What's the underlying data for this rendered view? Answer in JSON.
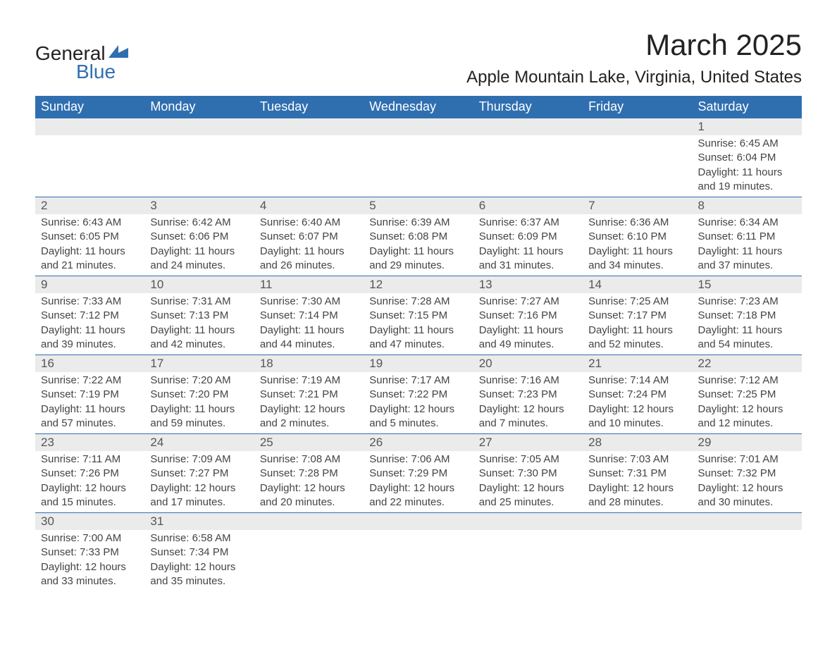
{
  "logo": {
    "general": "General",
    "blue": "Blue",
    "icon_color": "#2f6fb0"
  },
  "title": "March 2025",
  "location": "Apple Mountain Lake, Virginia, United States",
  "colors": {
    "header_bg": "#2f6fb0",
    "header_text": "#ffffff",
    "daynum_bg": "#ebebeb",
    "daynum_text": "#555555",
    "body_text": "#444444",
    "border": "#2f6fb0",
    "page_bg": "#ffffff"
  },
  "day_headers": [
    "Sunday",
    "Monday",
    "Tuesday",
    "Wednesday",
    "Thursday",
    "Friday",
    "Saturday"
  ],
  "weeks": [
    [
      null,
      null,
      null,
      null,
      null,
      null,
      {
        "n": "1",
        "sunrise": "Sunrise: 6:45 AM",
        "sunset": "Sunset: 6:04 PM",
        "day1": "Daylight: 11 hours",
        "day2": "and 19 minutes."
      }
    ],
    [
      {
        "n": "2",
        "sunrise": "Sunrise: 6:43 AM",
        "sunset": "Sunset: 6:05 PM",
        "day1": "Daylight: 11 hours",
        "day2": "and 21 minutes."
      },
      {
        "n": "3",
        "sunrise": "Sunrise: 6:42 AM",
        "sunset": "Sunset: 6:06 PM",
        "day1": "Daylight: 11 hours",
        "day2": "and 24 minutes."
      },
      {
        "n": "4",
        "sunrise": "Sunrise: 6:40 AM",
        "sunset": "Sunset: 6:07 PM",
        "day1": "Daylight: 11 hours",
        "day2": "and 26 minutes."
      },
      {
        "n": "5",
        "sunrise": "Sunrise: 6:39 AM",
        "sunset": "Sunset: 6:08 PM",
        "day1": "Daylight: 11 hours",
        "day2": "and 29 minutes."
      },
      {
        "n": "6",
        "sunrise": "Sunrise: 6:37 AM",
        "sunset": "Sunset: 6:09 PM",
        "day1": "Daylight: 11 hours",
        "day2": "and 31 minutes."
      },
      {
        "n": "7",
        "sunrise": "Sunrise: 6:36 AM",
        "sunset": "Sunset: 6:10 PM",
        "day1": "Daylight: 11 hours",
        "day2": "and 34 minutes."
      },
      {
        "n": "8",
        "sunrise": "Sunrise: 6:34 AM",
        "sunset": "Sunset: 6:11 PM",
        "day1": "Daylight: 11 hours",
        "day2": "and 37 minutes."
      }
    ],
    [
      {
        "n": "9",
        "sunrise": "Sunrise: 7:33 AM",
        "sunset": "Sunset: 7:12 PM",
        "day1": "Daylight: 11 hours",
        "day2": "and 39 minutes."
      },
      {
        "n": "10",
        "sunrise": "Sunrise: 7:31 AM",
        "sunset": "Sunset: 7:13 PM",
        "day1": "Daylight: 11 hours",
        "day2": "and 42 minutes."
      },
      {
        "n": "11",
        "sunrise": "Sunrise: 7:30 AM",
        "sunset": "Sunset: 7:14 PM",
        "day1": "Daylight: 11 hours",
        "day2": "and 44 minutes."
      },
      {
        "n": "12",
        "sunrise": "Sunrise: 7:28 AM",
        "sunset": "Sunset: 7:15 PM",
        "day1": "Daylight: 11 hours",
        "day2": "and 47 minutes."
      },
      {
        "n": "13",
        "sunrise": "Sunrise: 7:27 AM",
        "sunset": "Sunset: 7:16 PM",
        "day1": "Daylight: 11 hours",
        "day2": "and 49 minutes."
      },
      {
        "n": "14",
        "sunrise": "Sunrise: 7:25 AM",
        "sunset": "Sunset: 7:17 PM",
        "day1": "Daylight: 11 hours",
        "day2": "and 52 minutes."
      },
      {
        "n": "15",
        "sunrise": "Sunrise: 7:23 AM",
        "sunset": "Sunset: 7:18 PM",
        "day1": "Daylight: 11 hours",
        "day2": "and 54 minutes."
      }
    ],
    [
      {
        "n": "16",
        "sunrise": "Sunrise: 7:22 AM",
        "sunset": "Sunset: 7:19 PM",
        "day1": "Daylight: 11 hours",
        "day2": "and 57 minutes."
      },
      {
        "n": "17",
        "sunrise": "Sunrise: 7:20 AM",
        "sunset": "Sunset: 7:20 PM",
        "day1": "Daylight: 11 hours",
        "day2": "and 59 minutes."
      },
      {
        "n": "18",
        "sunrise": "Sunrise: 7:19 AM",
        "sunset": "Sunset: 7:21 PM",
        "day1": "Daylight: 12 hours",
        "day2": "and 2 minutes."
      },
      {
        "n": "19",
        "sunrise": "Sunrise: 7:17 AM",
        "sunset": "Sunset: 7:22 PM",
        "day1": "Daylight: 12 hours",
        "day2": "and 5 minutes."
      },
      {
        "n": "20",
        "sunrise": "Sunrise: 7:16 AM",
        "sunset": "Sunset: 7:23 PM",
        "day1": "Daylight: 12 hours",
        "day2": "and 7 minutes."
      },
      {
        "n": "21",
        "sunrise": "Sunrise: 7:14 AM",
        "sunset": "Sunset: 7:24 PM",
        "day1": "Daylight: 12 hours",
        "day2": "and 10 minutes."
      },
      {
        "n": "22",
        "sunrise": "Sunrise: 7:12 AM",
        "sunset": "Sunset: 7:25 PM",
        "day1": "Daylight: 12 hours",
        "day2": "and 12 minutes."
      }
    ],
    [
      {
        "n": "23",
        "sunrise": "Sunrise: 7:11 AM",
        "sunset": "Sunset: 7:26 PM",
        "day1": "Daylight: 12 hours",
        "day2": "and 15 minutes."
      },
      {
        "n": "24",
        "sunrise": "Sunrise: 7:09 AM",
        "sunset": "Sunset: 7:27 PM",
        "day1": "Daylight: 12 hours",
        "day2": "and 17 minutes."
      },
      {
        "n": "25",
        "sunrise": "Sunrise: 7:08 AM",
        "sunset": "Sunset: 7:28 PM",
        "day1": "Daylight: 12 hours",
        "day2": "and 20 minutes."
      },
      {
        "n": "26",
        "sunrise": "Sunrise: 7:06 AM",
        "sunset": "Sunset: 7:29 PM",
        "day1": "Daylight: 12 hours",
        "day2": "and 22 minutes."
      },
      {
        "n": "27",
        "sunrise": "Sunrise: 7:05 AM",
        "sunset": "Sunset: 7:30 PM",
        "day1": "Daylight: 12 hours",
        "day2": "and 25 minutes."
      },
      {
        "n": "28",
        "sunrise": "Sunrise: 7:03 AM",
        "sunset": "Sunset: 7:31 PM",
        "day1": "Daylight: 12 hours",
        "day2": "and 28 minutes."
      },
      {
        "n": "29",
        "sunrise": "Sunrise: 7:01 AM",
        "sunset": "Sunset: 7:32 PM",
        "day1": "Daylight: 12 hours",
        "day2": "and 30 minutes."
      }
    ],
    [
      {
        "n": "30",
        "sunrise": "Sunrise: 7:00 AM",
        "sunset": "Sunset: 7:33 PM",
        "day1": "Daylight: 12 hours",
        "day2": "and 33 minutes."
      },
      {
        "n": "31",
        "sunrise": "Sunrise: 6:58 AM",
        "sunset": "Sunset: 7:34 PM",
        "day1": "Daylight: 12 hours",
        "day2": "and 35 minutes."
      },
      null,
      null,
      null,
      null,
      null
    ]
  ]
}
